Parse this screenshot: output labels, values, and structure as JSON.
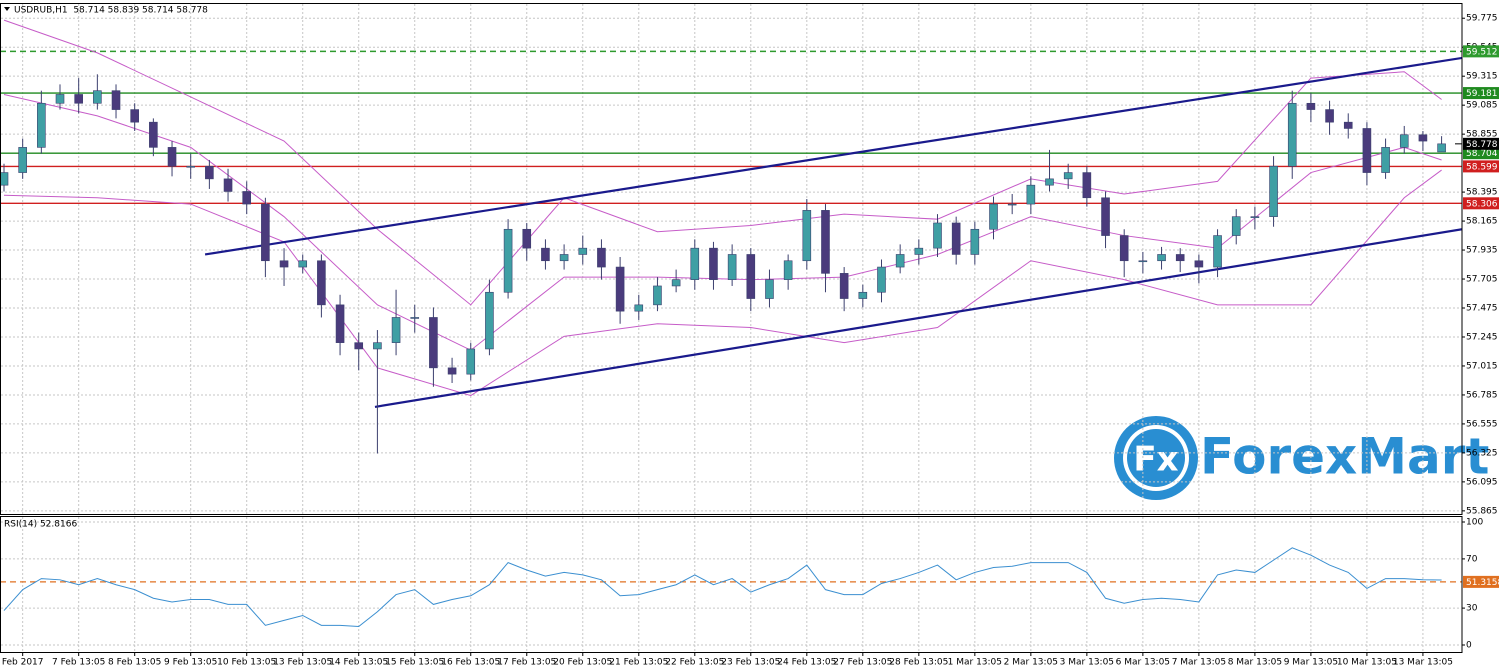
{
  "symbol_info": "USDRUB,H1  58.714 58.839 58.714 58.778",
  "watermark": {
    "mark": "Fx",
    "name": "ForexMart"
  },
  "chart_data": [
    {
      "type": "candlestick",
      "categories": [
        null,
        "Feb 2017",
        null,
        null,
        "7 Feb 13:05",
        null,
        null,
        "8 Feb 13:05",
        null,
        null,
        "9 Feb 13:05",
        null,
        null,
        "10 Feb 13:05",
        null,
        null,
        "13 Feb 13:05",
        null,
        null,
        "14 Feb 13:05",
        null,
        null,
        "15 Feb 13:05",
        null,
        null,
        "16 Feb 13:05",
        null,
        null,
        "17 Feb 13:05",
        null,
        null,
        "20 Feb 13:05",
        null,
        null,
        "21 Feb 13:05",
        null,
        null,
        "22 Feb 13:05",
        null,
        null,
        "23 Feb 13:05",
        null,
        null,
        "24 Feb 13:05",
        null,
        null,
        "27 Feb 13:05",
        null,
        null,
        "28 Feb 13:05",
        null,
        null,
        "1 Mar 13:05",
        null,
        null,
        "2 Mar 13:05",
        null,
        null,
        "3 Mar 13:05",
        null,
        null,
        "6 Mar 13:05",
        null,
        null,
        "7 Mar 13:05",
        null,
        null,
        "8 Mar 13:05",
        null,
        null,
        "9 Mar 13:05",
        null,
        null,
        "10 Mar 13:05",
        null,
        null,
        "13 Mar 13:05",
        null
      ],
      "open": [
        58.45,
        58.55,
        58.75,
        59.1,
        59.17,
        59.1,
        59.2,
        59.05,
        58.95,
        58.75,
        58.6,
        58.6,
        58.5,
        58.4,
        58.3,
        57.85,
        57.8,
        57.85,
        57.5,
        57.2,
        57.15,
        57.2,
        57.4,
        57.4,
        57.0,
        56.95,
        57.15,
        57.6,
        58.1,
        57.95,
        57.85,
        57.9,
        57.95,
        57.8,
        57.45,
        57.5,
        57.65,
        57.7,
        57.95,
        57.7,
        57.9,
        57.55,
        57.7,
        57.85,
        58.25,
        57.75,
        57.55,
        57.6,
        57.8,
        57.9,
        57.95,
        58.15,
        57.9,
        58.1,
        58.3,
        58.3,
        58.45,
        58.5,
        58.55,
        58.35,
        58.05,
        57.85,
        57.85,
        57.9,
        57.85,
        57.8,
        58.05,
        58.2,
        58.2,
        58.6,
        59.1,
        59.05,
        58.95,
        58.9,
        58.55,
        58.75,
        58.85,
        58.714
      ],
      "high": [
        58.62,
        58.82,
        59.2,
        59.25,
        59.3,
        59.33,
        59.25,
        59.1,
        58.98,
        58.8,
        58.7,
        58.65,
        58.58,
        58.48,
        58.35,
        57.95,
        57.9,
        57.9,
        57.58,
        57.28,
        57.3,
        57.62,
        57.5,
        57.48,
        57.08,
        57.2,
        57.7,
        58.18,
        58.15,
        58.02,
        57.98,
        58.05,
        58.02,
        57.88,
        57.58,
        57.72,
        57.78,
        58.02,
        58.0,
        57.98,
        57.95,
        57.78,
        57.9,
        58.34,
        58.3,
        57.8,
        57.66,
        57.86,
        57.98,
        58.02,
        58.22,
        58.2,
        58.16,
        58.36,
        58.38,
        58.52,
        58.73,
        58.62,
        58.6,
        58.4,
        58.1,
        57.92,
        57.96,
        57.95,
        57.9,
        58.1,
        58.26,
        58.28,
        58.68,
        59.2,
        59.18,
        59.12,
        59.02,
        58.95,
        58.82,
        58.92,
        58.88,
        58.839
      ],
      "low": [
        58.4,
        58.5,
        58.7,
        59.05,
        59.02,
        59.05,
        58.98,
        58.88,
        58.68,
        58.52,
        58.5,
        58.42,
        58.32,
        58.22,
        57.72,
        57.65,
        57.75,
        57.4,
        57.1,
        56.98,
        56.32,
        57.1,
        57.28,
        56.85,
        56.88,
        56.9,
        57.1,
        57.55,
        57.85,
        57.78,
        57.78,
        57.82,
        57.7,
        57.35,
        57.38,
        57.45,
        57.6,
        57.62,
        57.62,
        57.65,
        57.45,
        57.48,
        57.62,
        57.78,
        57.6,
        57.45,
        57.48,
        57.52,
        57.75,
        57.82,
        57.88,
        57.82,
        57.82,
        58.02,
        58.22,
        58.22,
        58.4,
        58.42,
        58.28,
        57.95,
        57.72,
        57.75,
        57.78,
        57.76,
        57.67,
        57.72,
        57.98,
        58.1,
        58.12,
        58.5,
        58.95,
        58.85,
        58.82,
        58.45,
        58.5,
        58.7,
        58.72,
        58.714
      ],
      "close": [
        58.55,
        58.75,
        59.1,
        59.17,
        59.1,
        59.2,
        59.05,
        58.95,
        58.75,
        58.6,
        58.6,
        58.5,
        58.4,
        58.3,
        57.85,
        57.8,
        57.85,
        57.5,
        57.2,
        57.15,
        57.2,
        57.4,
        57.4,
        57.0,
        56.95,
        57.15,
        57.6,
        58.1,
        57.95,
        57.85,
        57.9,
        57.95,
        57.8,
        57.45,
        57.5,
        57.65,
        57.7,
        57.95,
        57.7,
        57.9,
        57.55,
        57.7,
        57.85,
        58.25,
        57.75,
        57.55,
        57.6,
        57.8,
        57.9,
        57.95,
        58.15,
        57.9,
        58.1,
        58.3,
        58.3,
        58.45,
        58.5,
        58.55,
        58.35,
        58.05,
        57.85,
        57.85,
        57.9,
        57.85,
        57.8,
        58.05,
        58.2,
        58.2,
        58.6,
        59.1,
        59.05,
        58.95,
        58.9,
        58.55,
        58.75,
        58.85,
        58.8,
        58.778
      ],
      "up_color": "#3f9fa4",
      "down_color": "#4a3b7c",
      "wick_color": "#3b3f6e",
      "ylim": [
        55.84,
        59.88
      ],
      "yticks": [
        59.775,
        59.545,
        59.315,
        59.085,
        58.855,
        58.395,
        58.165,
        57.935,
        57.705,
        57.475,
        57.245,
        57.015,
        56.785,
        56.555,
        56.325,
        56.095,
        55.865
      ],
      "grid": true,
      "bands": {
        "color": "#c65cc8",
        "x": [
          0,
          5,
          10,
          15,
          20,
          25,
          30,
          35,
          40,
          45,
          50,
          55,
          60,
          65,
          70,
          75,
          77
        ],
        "upper": [
          59.76,
          59.5,
          59.15,
          58.8,
          58.1,
          57.5,
          58.35,
          58.08,
          58.13,
          58.22,
          58.18,
          58.5,
          58.38,
          58.48,
          59.3,
          59.35,
          59.13
        ],
        "middle": [
          59.17,
          59.0,
          58.75,
          58.2,
          57.5,
          57.14,
          57.72,
          57.72,
          57.7,
          57.72,
          57.9,
          58.2,
          58.05,
          57.95,
          58.55,
          58.75,
          58.65
        ],
        "lower": [
          58.37,
          58.35,
          58.3,
          58.0,
          57.0,
          56.78,
          57.25,
          57.35,
          57.32,
          57.2,
          57.32,
          57.85,
          57.7,
          57.5,
          57.5,
          58.35,
          58.57
        ]
      },
      "trendlines": [
        {
          "color": "#1a1a8c",
          "x": [
            10.77,
            78.1
          ],
          "y": [
            57.9,
            59.46
          ]
        },
        {
          "color": "#1a1a8c",
          "x": [
            19.87,
            78.1
          ],
          "y": [
            56.69,
            58.1
          ]
        }
      ],
      "levels": [
        {
          "value": 59.512,
          "color": "#2e9a2e",
          "dashed": true
        },
        {
          "value": 59.181,
          "color": "#1f8a1f",
          "dashed": false
        },
        {
          "value": 58.704,
          "color": "#1f8a1f",
          "dashed": false
        },
        {
          "value": 58.599,
          "color": "#d01f1f",
          "dashed": false
        },
        {
          "value": 58.306,
          "color": "#d01f1f",
          "dashed": false
        }
      ],
      "last_price": 58.778
    },
    {
      "type": "line",
      "title": "RSI(14) 52.8166",
      "color": "#3b8fd0",
      "values": [
        28,
        45,
        54,
        53,
        49,
        54,
        49,
        45,
        38,
        35,
        37,
        37,
        33,
        33,
        16,
        20,
        24,
        16,
        16,
        15,
        27,
        41,
        45,
        33,
        37,
        40,
        49,
        67,
        61,
        56,
        59,
        57,
        53,
        40,
        41,
        45,
        49,
        57,
        49,
        54,
        43,
        49,
        54,
        65,
        45,
        41,
        41,
        50,
        54,
        59,
        65,
        53,
        59,
        63,
        64,
        67,
        67,
        67,
        59,
        38,
        34,
        37,
        38,
        37,
        35,
        57,
        61,
        59,
        69,
        79,
        73,
        65,
        59,
        46,
        54,
        54,
        53,
        52.8166
      ],
      "ylim": [
        0,
        100
      ],
      "yticks": [
        100,
        70,
        30,
        0
      ],
      "grid": true,
      "level": {
        "value": 51.3158,
        "color": "#e07020"
      }
    }
  ]
}
